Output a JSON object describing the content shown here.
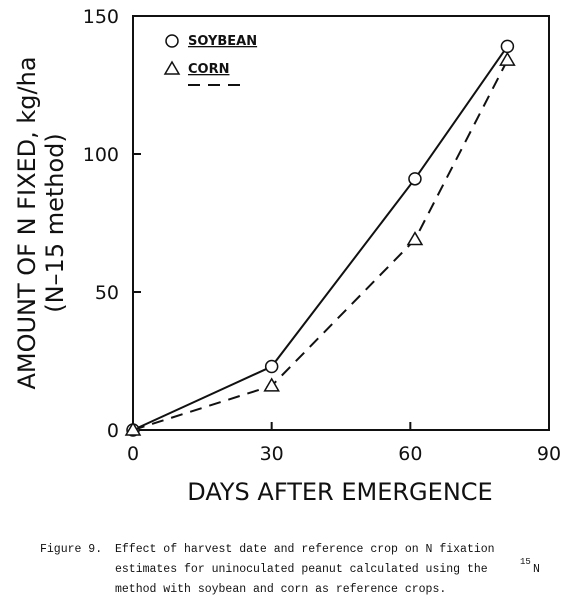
{
  "chart_data": {
    "type": "line",
    "x": [
      0,
      30,
      61,
      81
    ],
    "series": [
      {
        "name": "SOYBEAN",
        "color": "#111111",
        "marker": "circle",
        "linestyle": "solid",
        "values": [
          0,
          23,
          91,
          139
        ]
      },
      {
        "name": "CORN",
        "color": "#111111",
        "marker": "triangle",
        "linestyle": "dashed",
        "values": [
          0,
          16,
          69,
          134
        ]
      }
    ],
    "xlim": [
      0,
      90
    ],
    "xticks": [
      0,
      30,
      60,
      90
    ],
    "ylim": [
      0,
      150
    ],
    "yticks": [
      0,
      50,
      100,
      150
    ],
    "xlabel": "DAYS AFTER EMERGENCE",
    "ylabel": [
      "AMOUNT OF N FIXED, kg/ha",
      "(N–15 method)"
    ],
    "legend": "upper left"
  },
  "caption": {
    "label": "Figure 9.",
    "line1": "Effect of harvest date and reference crop on N fixation",
    "line2": "estimates for uninoculated peanut calculated using the",
    "superscript": "15",
    "line2_end": "N",
    "line3": "method with soybean and corn as reference crops."
  }
}
